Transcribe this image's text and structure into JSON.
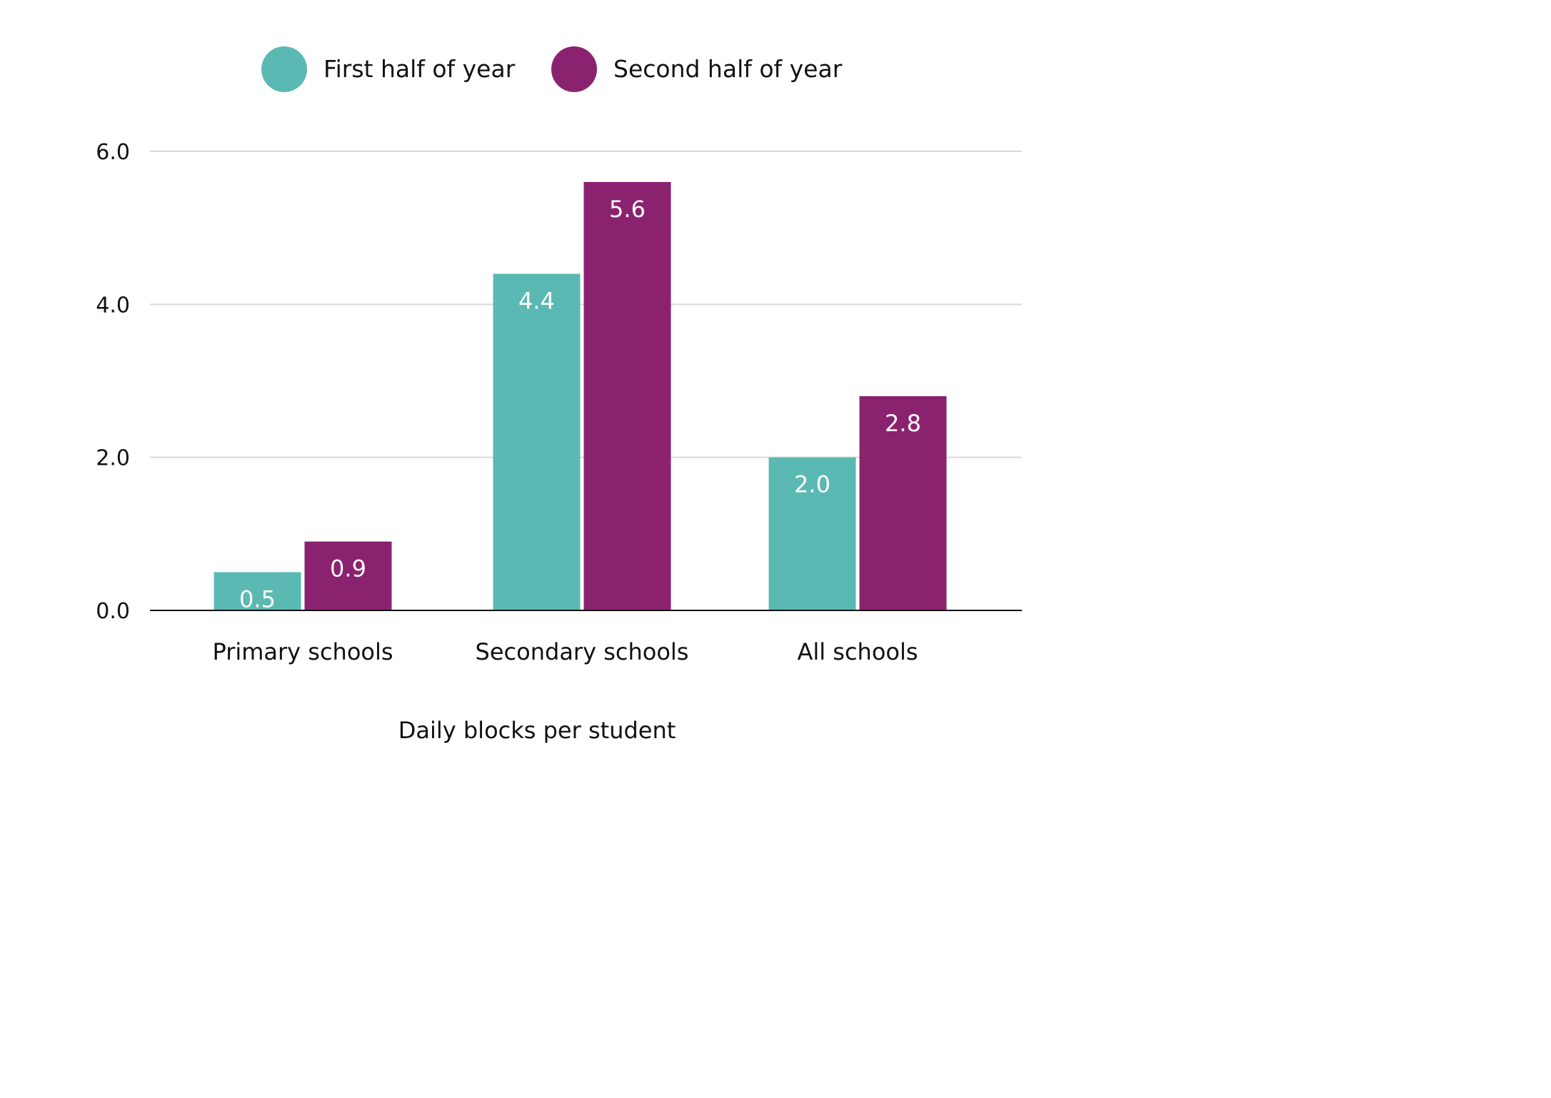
{
  "chart_data": {
    "type": "bar",
    "categories": [
      "Primary schools",
      "Secondary schools",
      "All schools"
    ],
    "series": [
      {
        "name": "First half of year",
        "values": [
          0.5,
          4.4,
          2.0
        ],
        "color": "#5BB9B3"
      },
      {
        "name": "Second half of year",
        "values": [
          0.9,
          5.6,
          2.8
        ],
        "color": "#8B2270"
      }
    ],
    "xlabel": "Daily blocks per student",
    "ylabel": "",
    "ylim": [
      0,
      6
    ],
    "yticks": [
      "0.0",
      "2.0",
      "4.0",
      "6.0"
    ],
    "grid": true,
    "legend_position": "top-center"
  }
}
